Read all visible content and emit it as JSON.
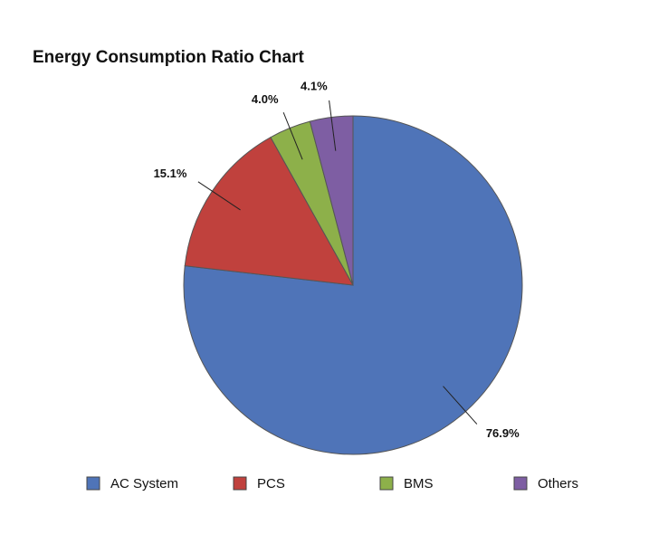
{
  "chart_data": {
    "type": "pie",
    "title": "Energy Consumption Ratio Chart",
    "categories": [
      "AC System",
      "PCS",
      "BMS",
      "Others"
    ],
    "values": [
      76.9,
      15.1,
      4.0,
      4.1
    ],
    "value_labels": [
      "76.9%",
      "15.1%",
      "4.0%",
      "4.1%"
    ],
    "colors": [
      "#4f74b8",
      "#c0413d",
      "#8db04a",
      "#7e5ea3"
    ],
    "legend": "bottom"
  }
}
